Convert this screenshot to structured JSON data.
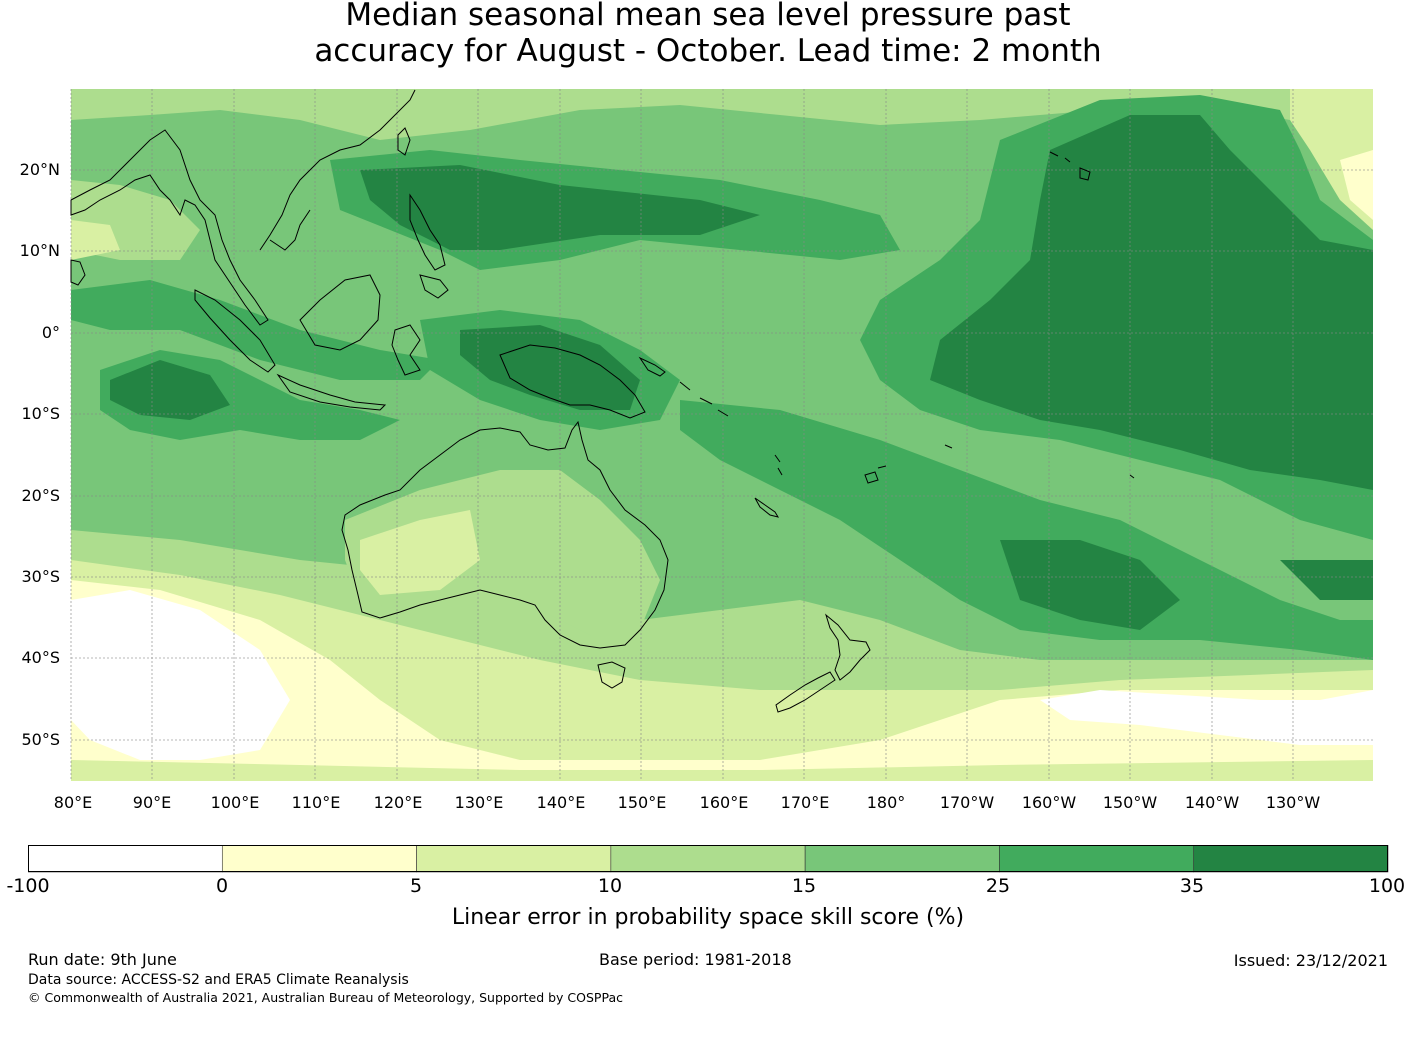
{
  "title": {
    "line1": "Median seasonal mean sea level pressure past",
    "line2": "accuracy for August - October. Lead time: 2 month"
  },
  "map": {
    "region": "Pacific / Australia",
    "lat_labels": [
      "20°N",
      "10°N",
      "0°",
      "10°S",
      "20°S",
      "30°S",
      "40°S",
      "50°S"
    ],
    "lon_labels": [
      "80°E",
      "90°E",
      "100°E",
      "110°E",
      "120°E",
      "130°E",
      "140°E",
      "150°E",
      "160°E",
      "170°E",
      "180°",
      "170°W",
      "160°W",
      "150°W",
      "140°W",
      "130°W"
    ],
    "grid": true,
    "coastlines": true
  },
  "colorbar": {
    "label": "Linear error in probability space skill score (%)",
    "ticks": [
      "-100",
      "0",
      "5",
      "10",
      "15",
      "25",
      "35",
      "100"
    ],
    "colors": [
      "#ffffff",
      "#ffffcc",
      "#d9f0a3",
      "#addd8e",
      "#78c679",
      "#41ab5d",
      "#238443"
    ]
  },
  "footer": {
    "run_date": "Run date: 9th June",
    "base_period": "Base period: 1981-2018",
    "issued": "Issued: 23/12/2021",
    "data_source": "Data source: ACCESS-S2 and ERA5 Climate Reanalysis",
    "copyright": "© Commonwealth of Australia 2021, Australian Bureau of Meteorology, Supported by COSPPac"
  }
}
